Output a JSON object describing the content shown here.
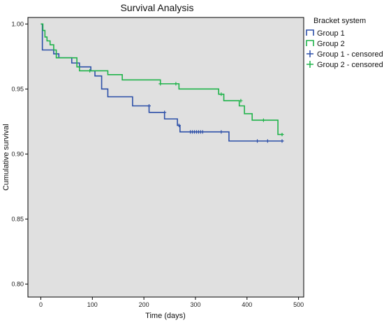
{
  "chart_data": {
    "type": "line",
    "title": "Survival Analysis",
    "xlabel": "Time (days)",
    "ylabel": "Cumulative survival",
    "xlim": [
      -25,
      510
    ],
    "ylim": [
      0.79,
      1.005
    ],
    "x_ticks": [
      0,
      100,
      200,
      300,
      400,
      500
    ],
    "x_tick_labels": [
      "0",
      "100",
      "200",
      "300",
      "400",
      "500"
    ],
    "y_ticks": [
      0.8,
      0.85,
      0.9,
      0.95,
      1.0
    ],
    "y_tick_labels": [
      "0.80",
      "0.85",
      "0.90",
      "0.95",
      "1.00"
    ],
    "grid": false,
    "background_color": "#e0e0e0",
    "legend": {
      "title": "Bracket system",
      "placement": "right"
    },
    "series": [
      {
        "name": "Group 1",
        "color": "#2c4fa8",
        "steps": [
          [
            0,
            1.0
          ],
          [
            3,
            0.98
          ],
          [
            25,
            0.977
          ],
          [
            35,
            0.974
          ],
          [
            60,
            0.97
          ],
          [
            75,
            0.967
          ],
          [
            97,
            0.964
          ],
          [
            105,
            0.96
          ],
          [
            118,
            0.95
          ],
          [
            130,
            0.944
          ],
          [
            178,
            0.937
          ],
          [
            210,
            0.932
          ],
          [
            240,
            0.927
          ],
          [
            265,
            0.922
          ],
          [
            270,
            0.917
          ],
          [
            365,
            0.91
          ],
          [
            470,
            0.91
          ]
        ]
      },
      {
        "name": "Group 2",
        "color": "#1fb34a",
        "steps": [
          [
            0,
            1.0
          ],
          [
            4,
            0.995
          ],
          [
            8,
            0.99
          ],
          [
            12,
            0.987
          ],
          [
            18,
            0.984
          ],
          [
            25,
            0.98
          ],
          [
            30,
            0.974
          ],
          [
            70,
            0.967
          ],
          [
            75,
            0.964
          ],
          [
            130,
            0.961
          ],
          [
            158,
            0.957
          ],
          [
            232,
            0.954
          ],
          [
            268,
            0.95
          ],
          [
            345,
            0.946
          ],
          [
            355,
            0.941
          ],
          [
            385,
            0.937
          ],
          [
            395,
            0.931
          ],
          [
            410,
            0.926
          ],
          [
            460,
            0.915
          ],
          [
            470,
            0.915
          ]
        ]
      },
      {
        "name": "Group 1 - censored",
        "color": "#2c4fa8",
        "marker": "plus",
        "points": [
          [
            210,
            0.937
          ],
          [
            240,
            0.932
          ],
          [
            268,
            0.922
          ],
          [
            290,
            0.917
          ],
          [
            294,
            0.917
          ],
          [
            298,
            0.917
          ],
          [
            302,
            0.917
          ],
          [
            306,
            0.917
          ],
          [
            310,
            0.917
          ],
          [
            314,
            0.917
          ],
          [
            350,
            0.917
          ],
          [
            420,
            0.91
          ],
          [
            440,
            0.91
          ],
          [
            468,
            0.91
          ]
        ]
      },
      {
        "name": "Group 2 - censored",
        "color": "#1fb34a",
        "marker": "plus",
        "points": [
          [
            95,
            0.964
          ],
          [
            232,
            0.954
          ],
          [
            262,
            0.954
          ],
          [
            350,
            0.946
          ],
          [
            388,
            0.941
          ],
          [
            432,
            0.926
          ],
          [
            468,
            0.915
          ]
        ]
      }
    ]
  }
}
